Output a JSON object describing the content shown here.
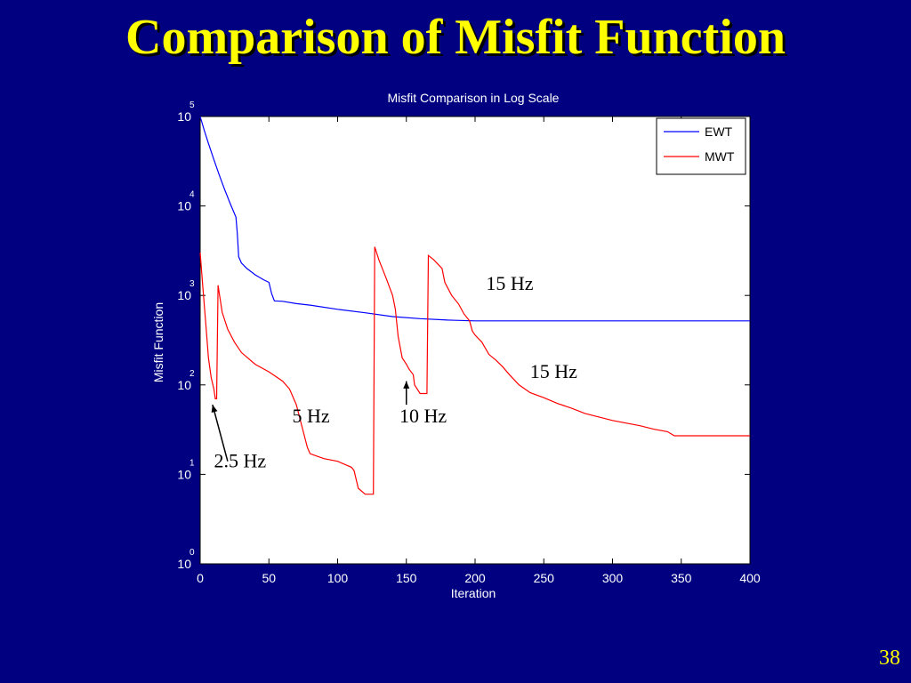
{
  "slide": {
    "title": "Comparison of Misfit Function",
    "page_number": "38"
  },
  "chart_data": {
    "type": "line",
    "title": "Misfit Comparison in Log Scale",
    "xlabel": "Iteration",
    "ylabel": "Misfit Function",
    "xlim": [
      0,
      400
    ],
    "ylim": [
      1,
      100000
    ],
    "yscale": "log",
    "xticks": [
      0,
      50,
      100,
      150,
      200,
      250,
      300,
      350,
      400
    ],
    "yticks": [
      {
        "base": "10",
        "exp": "0",
        "value": 1
      },
      {
        "base": "10",
        "exp": "1",
        "value": 10
      },
      {
        "base": "10",
        "exp": "2",
        "value": 100
      },
      {
        "base": "10",
        "exp": "3",
        "value": 1000
      },
      {
        "base": "10",
        "exp": "4",
        "value": 10000
      },
      {
        "base": "10",
        "exp": "5",
        "value": 100000
      }
    ],
    "grid": false,
    "legend_position": "top-right",
    "series": [
      {
        "name": "EWT",
        "color": "#0000ff",
        "points": [
          [
            0,
            100000
          ],
          [
            3,
            70000
          ],
          [
            6,
            50000
          ],
          [
            10,
            33000
          ],
          [
            14,
            22000
          ],
          [
            18,
            15000
          ],
          [
            22,
            10500
          ],
          [
            26,
            7500
          ],
          [
            27,
            5000
          ],
          [
            28,
            2700
          ],
          [
            30,
            2300
          ],
          [
            34,
            2000
          ],
          [
            40,
            1700
          ],
          [
            46,
            1500
          ],
          [
            50,
            1400
          ],
          [
            52,
            1050
          ],
          [
            54,
            870
          ],
          [
            60,
            860
          ],
          [
            70,
            810
          ],
          [
            80,
            780
          ],
          [
            100,
            700
          ],
          [
            120,
            640
          ],
          [
            140,
            580
          ],
          [
            160,
            550
          ],
          [
            180,
            530
          ],
          [
            200,
            520
          ],
          [
            250,
            520
          ],
          [
            300,
            520
          ],
          [
            400,
            520
          ]
        ]
      },
      {
        "name": "MWT",
        "color": "#ff0000",
        "points": [
          [
            0,
            3000
          ],
          [
            2,
            1200
          ],
          [
            4,
            500
          ],
          [
            6,
            200
          ],
          [
            8,
            120
          ],
          [
            10,
            90
          ],
          [
            11,
            70
          ],
          [
            12,
            70
          ],
          [
            13,
            1300
          ],
          [
            16,
            650
          ],
          [
            20,
            420
          ],
          [
            25,
            300
          ],
          [
            30,
            230
          ],
          [
            40,
            170
          ],
          [
            50,
            140
          ],
          [
            60,
            110
          ],
          [
            65,
            90
          ],
          [
            70,
            60
          ],
          [
            75,
            30
          ],
          [
            78,
            20
          ],
          [
            80,
            17
          ],
          [
            85,
            16
          ],
          [
            90,
            15
          ],
          [
            100,
            14
          ],
          [
            110,
            12
          ],
          [
            112,
            11
          ],
          [
            115,
            7
          ],
          [
            120,
            6
          ],
          [
            125,
            6
          ],
          [
            126,
            6
          ],
          [
            127,
            3500
          ],
          [
            130,
            2500
          ],
          [
            135,
            1600
          ],
          [
            140,
            1000
          ],
          [
            142,
            700
          ],
          [
            144,
            350
          ],
          [
            147,
            200
          ],
          [
            150,
            170
          ],
          [
            152,
            150
          ],
          [
            155,
            130
          ],
          [
            156,
            100
          ],
          [
            160,
            80
          ],
          [
            165,
            80
          ],
          [
            166,
            2800
          ],
          [
            170,
            2500
          ],
          [
            176,
            2000
          ],
          [
            178,
            1400
          ],
          [
            183,
            1000
          ],
          [
            188,
            800
          ],
          [
            192,
            620
          ],
          [
            196,
            520
          ],
          [
            198,
            400
          ],
          [
            200,
            360
          ],
          [
            205,
            300
          ],
          [
            210,
            220
          ],
          [
            215,
            190
          ],
          [
            220,
            160
          ],
          [
            225,
            130
          ],
          [
            232,
            100
          ],
          [
            240,
            82
          ],
          [
            250,
            72
          ],
          [
            260,
            62
          ],
          [
            270,
            55
          ],
          [
            280,
            48
          ],
          [
            300,
            40
          ],
          [
            320,
            35
          ],
          [
            330,
            32
          ],
          [
            340,
            30
          ],
          [
            345,
            27
          ],
          [
            360,
            27
          ],
          [
            400,
            27
          ]
        ]
      }
    ],
    "annotations": [
      {
        "text": "15 Hz",
        "x": 208,
        "y": 1150
      },
      {
        "text": "15 Hz",
        "x": 240,
        "y": 120
      },
      {
        "text": "5 Hz",
        "x": 67,
        "y": 38
      },
      {
        "text": "10 Hz",
        "x": 145,
        "y": 38
      },
      {
        "text": "2.5 Hz",
        "x": 10,
        "y": 12
      }
    ],
    "arrows": [
      {
        "from": [
          20,
          14
        ],
        "to": [
          9,
          60
        ]
      },
      {
        "from": [
          150,
          60
        ],
        "to": [
          150,
          110
        ]
      }
    ]
  }
}
